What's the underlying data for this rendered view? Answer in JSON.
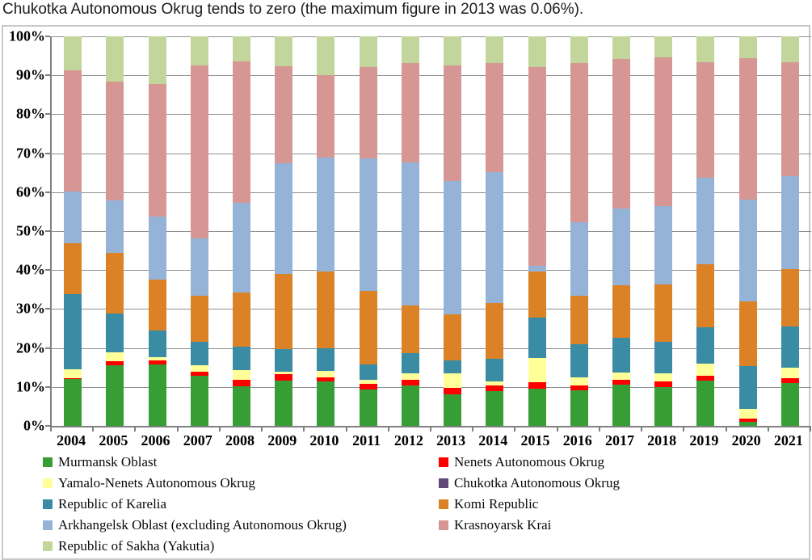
{
  "title": "Chukotka Autonomous Okrug tends to zero (the maximum figure in 2013 was 0.06%).",
  "axis": {
    "y_ticks": [
      "0%",
      "10%",
      "20%",
      "30%",
      "40%",
      "50%",
      "60%",
      "70%",
      "80%",
      "90%",
      "100%"
    ]
  },
  "colors": {
    "axis_line": "#808080",
    "gridline": "#8f8f8f",
    "box_border": "#c9c9c9",
    "background": "#ffffff"
  },
  "chart_data": {
    "type": "bar",
    "stacked": true,
    "percent_stacked": true,
    "title": "Chukotka Autonomous Okrug tends to zero (the maximum figure in 2013 was 0.06%).",
    "xlabel": "",
    "ylabel": "",
    "ylim": [
      0,
      100
    ],
    "grid": true,
    "legend_position": "bottom, two columns",
    "categories": [
      "2004",
      "2005",
      "2006",
      "2007",
      "2008",
      "2009",
      "2010",
      "2011",
      "2012",
      "2013",
      "2014",
      "2015",
      "2016",
      "2017",
      "2018",
      "2019",
      "2020",
      "2021"
    ],
    "series": [
      {
        "name": "Murmansk Oblast",
        "color": "#379e36",
        "values": [
          12.0,
          15.5,
          15.8,
          12.9,
          10.2,
          11.6,
          11.4,
          9.3,
          10.4,
          8.1,
          8.9,
          9.5,
          9.1,
          10.6,
          10.0,
          11.6,
          1.0,
          11.0
        ]
      },
      {
        "name": "Nenets Autonomous Okrug",
        "color": "#ff0000",
        "values": [
          0.3,
          1.0,
          1.0,
          1.0,
          1.6,
          1.7,
          1.0,
          1.5,
          1.4,
          1.7,
          1.5,
          1.7,
          1.3,
          1.2,
          1.4,
          1.3,
          0.9,
          1.2
        ]
      },
      {
        "name": "Yamalo-Nenets Autonomous Okrug",
        "color": "#ffff99",
        "values": [
          2.2,
          2.3,
          0.9,
          1.7,
          2.5,
          0.6,
          1.7,
          1.0,
          1.7,
          3.6,
          1.0,
          6.2,
          2.0,
          1.9,
          2.1,
          3.1,
          2.5,
          2.7
        ]
      },
      {
        "name": "Chukotka Autonomous Okrug",
        "color": "#5f497a",
        "values": [
          0,
          0,
          0,
          0,
          0,
          0,
          0,
          0,
          0,
          0.1,
          0,
          0,
          0,
          0,
          0,
          0,
          0,
          0
        ]
      },
      {
        "name": "Republic of Karelia",
        "color": "#3a8ba4",
        "values": [
          19.3,
          10.0,
          6.8,
          6.0,
          6.0,
          5.8,
          5.8,
          4.0,
          5.2,
          3.4,
          5.8,
          10.4,
          8.6,
          8.9,
          8.1,
          9.3,
          11.0,
          10.6
        ]
      },
      {
        "name": "Komi Republic",
        "color": "#db8227",
        "values": [
          13.1,
          15.6,
          13.1,
          11.8,
          13.9,
          19.3,
          19.7,
          18.8,
          12.2,
          11.8,
          14.3,
          11.8,
          12.4,
          13.5,
          14.7,
          16.2,
          16.6,
          14.7
        ]
      },
      {
        "name": "Arkhangelsk Oblast (excluding Autonomous Okrug)",
        "color": "#95b3d7",
        "values": [
          13.3,
          13.5,
          16.1,
          14.7,
          23.1,
          28.4,
          29.3,
          34.1,
          36.7,
          34.1,
          33.6,
          1.5,
          18.9,
          19.7,
          20.1,
          22.2,
          26.0,
          23.9
        ]
      },
      {
        "name": "Krasnoyarsk Krai",
        "color": "#d59694",
        "values": [
          31.1,
          30.5,
          34.1,
          44.4,
          36.3,
          24.9,
          21.1,
          23.4,
          25.6,
          29.8,
          28.1,
          51.0,
          40.9,
          38.4,
          38.2,
          29.7,
          36.4,
          29.3
        ]
      },
      {
        "name": "Republic of Sakha (Yakutia)",
        "color": "#c2d69b",
        "values": [
          8.7,
          11.6,
          12.2,
          7.5,
          6.4,
          7.7,
          10.0,
          7.9,
          6.8,
          7.4,
          6.8,
          7.9,
          6.8,
          5.8,
          5.4,
          6.6,
          5.6,
          6.6
        ]
      }
    ]
  }
}
